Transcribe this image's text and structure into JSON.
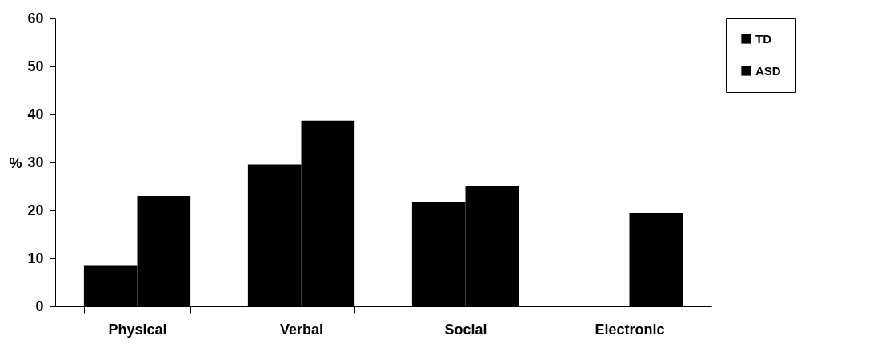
{
  "chart_data": {
    "type": "bar",
    "ylabel": "%",
    "categories": [
      "Physical",
      "Verbal",
      "Social",
      "Electronic"
    ],
    "series": [
      {
        "name": "TD",
        "color": "#000000",
        "values": [
          8.6,
          29.6,
          21.8,
          0
        ]
      },
      {
        "name": "ASD",
        "color": "#000000",
        "values": [
          23,
          38.7,
          25,
          19.5
        ]
      }
    ],
    "ylim": [
      0,
      60
    ],
    "yticks": [
      0,
      10,
      20,
      30,
      40,
      50,
      60
    ],
    "grid": false,
    "legend": "right"
  }
}
